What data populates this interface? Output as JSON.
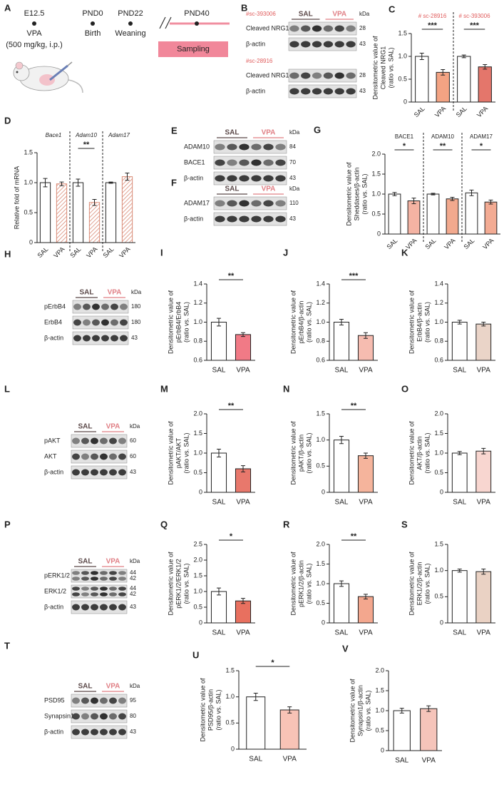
{
  "timeline": {
    "letter": "A",
    "stages": [
      "E12.5",
      "PND0",
      "PND22",
      "PND40"
    ],
    "events": [
      "VPA",
      "Birth",
      "Weaning"
    ],
    "dose": "(500 mg/kg, i.p.)",
    "sampling": "Sampling"
  },
  "blots": [
    {
      "letter": "B",
      "unit": "kDa",
      "groups": [
        "SAL",
        "VPA"
      ],
      "blocks": [
        {
          "antibody": "#sc-393006",
          "rows": [
            {
              "name": "Cleaved NRG1",
              "kda": [
                "28"
              ]
            },
            {
              "name": "β-actin",
              "kda": [
                "43"
              ]
            }
          ]
        },
        {
          "antibody": "#sc-28916",
          "rows": [
            {
              "name": "Cleaved NRG1",
              "kda": [
                "28"
              ]
            },
            {
              "name": "β-actin",
              "kda": [
                "43"
              ]
            }
          ]
        }
      ]
    },
    {
      "letter": "E",
      "unit": "kDa",
      "groups": [
        "SAL",
        "VPA"
      ],
      "blocks": [
        {
          "rows": [
            {
              "name": "ADAM10",
              "kda": [
                "84"
              ]
            },
            {
              "name": "BACE1",
              "kda": [
                "70"
              ]
            },
            {
              "name": "β-actin",
              "kda": [
                "43"
              ]
            }
          ]
        }
      ]
    },
    {
      "letter": "F",
      "unit": "kDa",
      "groups": [
        "SAL",
        "VPA"
      ],
      "blocks": [
        {
          "rows": [
            {
              "name": "ADAM17",
              "kda": [
                "110"
              ]
            },
            {
              "name": "β-actin",
              "kda": [
                "43"
              ]
            }
          ]
        }
      ]
    },
    {
      "letter": "H",
      "unit": "kDa",
      "groups": [
        "SAL",
        "VPA"
      ],
      "blocks": [
        {
          "rows": [
            {
              "name": "pErbB4",
              "kda": [
                "180"
              ]
            },
            {
              "name": "ErbB4",
              "kda": [
                "180"
              ]
            },
            {
              "name": "β-actin",
              "kda": [
                "43"
              ]
            }
          ]
        }
      ]
    },
    {
      "letter": "L",
      "unit": "kDa",
      "groups": [
        "SAL",
        "VPA"
      ],
      "blocks": [
        {
          "rows": [
            {
              "name": "pAKT",
              "kda": [
                "60"
              ]
            },
            {
              "name": "AKT",
              "kda": [
                "60"
              ]
            },
            {
              "name": "β-actin",
              "kda": [
                "43"
              ]
            }
          ]
        }
      ]
    },
    {
      "letter": "P",
      "unit": "kDa",
      "groups": [
        "SAL",
        "VPA"
      ],
      "blocks": [
        {
          "rows": [
            {
              "name": "pERK1/2",
              "kda": [
                "44",
                "42"
              ]
            },
            {
              "name": "ERK1/2",
              "kda": [
                "44",
                "42"
              ]
            },
            {
              "name": "β-actin",
              "kda": [
                "43"
              ]
            }
          ]
        }
      ]
    },
    {
      "letter": "T",
      "unit": "kDa",
      "groups": [
        "SAL",
        "VPA"
      ],
      "blocks": [
        {
          "rows": [
            {
              "name": "PSD95",
              "kda": [
                "95"
              ]
            },
            {
              "name": "Synapsin1",
              "kda": [
                "80"
              ]
            },
            {
              "name": "β-actin",
              "kda": [
                "43"
              ]
            }
          ]
        }
      ]
    }
  ],
  "chart_data": [
    {
      "type": "bar",
      "letter": "C",
      "y_label": [
        "Densitometric value of",
        "Cleaved NRG1",
        "(ratio vs. SAL)"
      ],
      "groups": [
        "# sc-28916",
        "# sc-393006"
      ],
      "group_label_color": "#e05c5c",
      "categories": [
        "SAL",
        "VPA",
        "SAL",
        "VPA"
      ],
      "values": [
        1.0,
        0.65,
        1.0,
        0.77
      ],
      "errors": [
        0.07,
        0.06,
        0.03,
        0.05
      ],
      "colors": [
        "#ffffff",
        "#f3a383",
        "#ffffff",
        "#e4766b"
      ],
      "sig": [
        "***",
        "***"
      ],
      "ylim": [
        0,
        1.5
      ],
      "yticks": [
        0,
        0.5,
        {
          "value": 1,
          "label": "1.0"
        },
        1.5
      ]
    },
    {
      "type": "bar",
      "letter": "D",
      "y_label": [
        "Relative fold of mRNA"
      ],
      "groups": [
        "Bace1",
        "Adam10",
        "Adam17"
      ],
      "group_label_style": "italic",
      "hatch": true,
      "categories": [
        "SAL",
        "VPA",
        "SAL",
        "VPA",
        "SAL",
        "VPA"
      ],
      "values": [
        1.0,
        0.98,
        1.0,
        0.67,
        1.0,
        1.1
      ],
      "errors": [
        0.07,
        0.03,
        0.06,
        0.05,
        0.01,
        0.06
      ],
      "colors": [
        "#ffffff",
        "#d98a76",
        "#ffffff",
        "#d98a76",
        "#ffffff",
        "#d98a76"
      ],
      "sig": [
        null,
        "**",
        null
      ],
      "ylim": [
        0,
        1.5
      ],
      "yticks": [
        0,
        0.5,
        {
          "value": 1,
          "label": "1.0"
        },
        1.5
      ]
    },
    {
      "type": "bar",
      "letter": "G",
      "y_label": [
        "Densitometric value of",
        "Sheddases/β-actin",
        "(ratio vs. SAL)"
      ],
      "groups": [
        "BACE1",
        "ADAM10",
        "ADAM17"
      ],
      "categories": [
        "SAL",
        "VPA",
        "SAL",
        "VPA",
        "SAL",
        "VPA"
      ],
      "values": [
        1.0,
        0.83,
        1.0,
        0.88,
        1.03,
        0.8
      ],
      "errors": [
        0.04,
        0.07,
        0.02,
        0.04,
        0.07,
        0.05
      ],
      "colors": [
        "#ffffff",
        "#f4b3a3",
        "#ffffff",
        "#f2a98e",
        "#ffffff",
        "#f3ab93"
      ],
      "sig": [
        "*",
        "**",
        "*"
      ],
      "ylim": [
        0,
        2
      ],
      "yticks": [
        0,
        0.5,
        {
          "value": 1,
          "label": "1.0"
        },
        1.5,
        {
          "value": 2,
          "label": "2.0"
        }
      ]
    },
    {
      "type": "bar",
      "letter": "I",
      "y_label": [
        "Densitometric value of",
        "pErbB4/ErbB4",
        "(ratio vs. SAL)"
      ],
      "categories": [
        "SAL",
        "VPA"
      ],
      "values": [
        1.0,
        0.87
      ],
      "errors": [
        0.04,
        0.02
      ],
      "colors": [
        "#ffffff",
        "#f17a86"
      ],
      "sig": [
        "**"
      ],
      "ylim": [
        0.6,
        1.4
      ],
      "yticks": [
        0.6,
        0.8,
        {
          "value": 1,
          "label": "1.0"
        },
        1.2,
        1.4
      ]
    },
    {
      "type": "bar",
      "letter": "J",
      "y_label": [
        "Densitometric value of",
        "pErbB4/β-actin",
        "(ratio vs. SAL)"
      ],
      "categories": [
        "SAL",
        "VPA"
      ],
      "values": [
        1.0,
        0.86
      ],
      "errors": [
        0.03,
        0.03
      ],
      "colors": [
        "#ffffff",
        "#f6bcb0"
      ],
      "sig": [
        "***"
      ],
      "ylim": [
        0.6,
        1.4
      ],
      "yticks": [
        0.6,
        0.8,
        {
          "value": 1,
          "label": "1.0"
        },
        1.2,
        1.4
      ]
    },
    {
      "type": "bar",
      "letter": "K",
      "y_label": [
        "Densitometric value of",
        "ErbB4/β-actin",
        "(ratio vs. SAL)"
      ],
      "categories": [
        "SAL",
        "VPA"
      ],
      "values": [
        1.0,
        0.98
      ],
      "errors": [
        0.02,
        0.02
      ],
      "colors": [
        "#ffffff",
        "#ead4c8"
      ],
      "ylim": [
        0.6,
        1.4
      ],
      "yticks": [
        0.6,
        0.8,
        {
          "value": 1,
          "label": "1.0"
        },
        1.2,
        1.4
      ]
    },
    {
      "type": "bar",
      "letter": "M",
      "y_label": [
        "Densitometric value of",
        "pAKT/AKT",
        "(ratio vs. SAL)"
      ],
      "categories": [
        "SAL",
        "VPA"
      ],
      "values": [
        1.0,
        0.6
      ],
      "errors": [
        0.1,
        0.08
      ],
      "colors": [
        "#ffffff",
        "#e8786c"
      ],
      "sig": [
        "**"
      ],
      "ylim": [
        0,
        2
      ],
      "yticks": [
        0,
        0.5,
        {
          "value": 1,
          "label": "1.0"
        },
        1.5,
        {
          "value": 2,
          "label": "2.0"
        }
      ]
    },
    {
      "type": "bar",
      "letter": "N",
      "y_label": [
        "Densitometric value of",
        "pAKT/β-actin",
        "(ratio vs. SAL)"
      ],
      "categories": [
        "SAL",
        "VPA"
      ],
      "values": [
        1.0,
        0.7
      ],
      "errors": [
        0.07,
        0.05
      ],
      "colors": [
        "#ffffff",
        "#f5b49c"
      ],
      "sig": [
        "**"
      ],
      "ylim": [
        0,
        1.5
      ],
      "yticks": [
        0,
        0.5,
        {
          "value": 1,
          "label": "1.0"
        },
        1.5
      ]
    },
    {
      "type": "bar",
      "letter": "O",
      "y_label": [
        "Densitometric value of",
        "AKT/β-actin",
        "(ratio vs. SAL)"
      ],
      "categories": [
        "SAL",
        "VPA"
      ],
      "values": [
        1.0,
        1.05
      ],
      "errors": [
        0.04,
        0.07
      ],
      "colors": [
        "#ffffff",
        "#f8d6d0"
      ],
      "ylim": [
        0,
        2
      ],
      "yticks": [
        0,
        0.5,
        {
          "value": 1,
          "label": "1.0"
        },
        1.5,
        {
          "value": 2,
          "label": "2.0"
        }
      ]
    },
    {
      "type": "bar",
      "letter": "Q",
      "y_label": [
        "Densitometric value of",
        "pERK1/2/ERK1/2",
        "(ratio vs. SAL)"
      ],
      "categories": [
        "SAL",
        "VPA"
      ],
      "values": [
        1.0,
        0.7
      ],
      "errors": [
        0.11,
        0.08
      ],
      "colors": [
        "#ffffff",
        "#e8705f"
      ],
      "sig": [
        "*"
      ],
      "ylim": [
        0,
        2.5
      ],
      "yticks": [
        0,
        0.5,
        {
          "value": 1,
          "label": "1.0"
        },
        1.5,
        {
          "value": 2,
          "label": "2.0"
        },
        2.5
      ]
    },
    {
      "type": "bar",
      "letter": "R",
      "y_label": [
        "Densitometric value of",
        "pERK1/2/β-actin",
        "(ratio vs. SAL)"
      ],
      "categories": [
        "SAL",
        "VPA"
      ],
      "values": [
        1.0,
        0.67
      ],
      "errors": [
        0.07,
        0.06
      ],
      "colors": [
        "#ffffff",
        "#f3a78e"
      ],
      "sig": [
        "**"
      ],
      "ylim": [
        0,
        2
      ],
      "yticks": [
        0,
        0.5,
        {
          "value": 1,
          "label": "1.0"
        },
        1.5,
        {
          "value": 2,
          "label": "2.0"
        }
      ]
    },
    {
      "type": "bar",
      "letter": "S",
      "y_label": [
        "Densitometric value of",
        "ERK1/2/β-actin",
        "(ratio vs. SAL)"
      ],
      "categories": [
        "SAL",
        "VPA"
      ],
      "values": [
        1.0,
        0.98
      ],
      "errors": [
        0.03,
        0.05
      ],
      "colors": [
        "#ffffff",
        "#ead2c4"
      ],
      "ylim": [
        0,
        1.5
      ],
      "yticks": [
        0,
        0.5,
        {
          "value": 1,
          "label": "1.0"
        },
        1.5
      ]
    },
    {
      "type": "bar",
      "letter": "U",
      "y_label": [
        "Densitometric value of",
        "PSD95/β-actin",
        "(ratio vs. SAL)"
      ],
      "categories": [
        "SAL",
        "VPA"
      ],
      "values": [
        1.0,
        0.75
      ],
      "errors": [
        0.07,
        0.06
      ],
      "colors": [
        "#ffffff",
        "#f8c3b6"
      ],
      "sig": [
        "*"
      ],
      "ylim": [
        0,
        1.5
      ],
      "yticks": [
        0,
        0.5,
        {
          "value": 1,
          "label": "1.0"
        },
        1.5
      ]
    },
    {
      "type": "bar",
      "letter": "V",
      "y_label": [
        "Densitometric value of",
        "Synapsin1/β-actin",
        "(ratio vs. SAL)"
      ],
      "categories": [
        "SAL",
        "VPA"
      ],
      "values": [
        1.0,
        1.05
      ],
      "errors": [
        0.06,
        0.07
      ],
      "colors": [
        "#ffffff",
        "#f5c4ba"
      ],
      "ylim": [
        0,
        2
      ],
      "yticks": [
        0,
        0.5,
        {
          "value": 1,
          "label": "1.0"
        },
        1.5,
        {
          "value": 2,
          "label": "2.0"
        }
      ]
    }
  ]
}
